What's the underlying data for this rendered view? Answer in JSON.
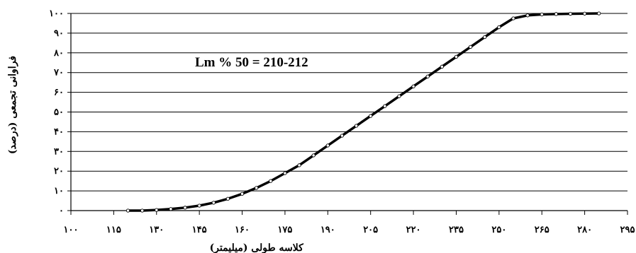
{
  "chart_data": {
    "type": "line",
    "title": "",
    "xlabel": "کلاسه طولی (میلیمتر)",
    "ylabel": "فراوانی تجمعی (درصد)",
    "annotation": "Lm % 50 = 210-212",
    "xlim": [
      100,
      295
    ],
    "ylim": [
      0,
      100
    ],
    "grid": true,
    "x_ticks": [
      100,
      115,
      130,
      145,
      160,
      175,
      190,
      205,
      220,
      235,
      250,
      265,
      280,
      295
    ],
    "x_tick_labels": [
      "۱۰۰",
      "۱۱۵",
      "۱۳۰",
      "۱۴۵",
      "۱۶۰",
      "۱۷۵",
      "۱۹۰",
      "۲۰۵",
      "۲۲۰",
      "۲۳۵",
      "۲۵۰",
      "۲۶۵",
      "۲۸۰",
      "۲۹۵"
    ],
    "y_ticks": [
      0,
      10,
      20,
      30,
      40,
      50,
      60,
      70,
      80,
      90,
      100
    ],
    "y_tick_labels": [
      "۰",
      "۱۰",
      "۲۰",
      "۳۰",
      "۴۰",
      "۵۰",
      "۶۰",
      "۷۰",
      "۸۰",
      "۹۰",
      "۱۰۰"
    ],
    "series": [
      {
        "x": [
          120,
          125,
          130,
          135,
          140,
          145,
          150,
          155,
          160,
          165,
          170,
          175,
          180,
          185,
          190,
          195,
          200,
          205,
          210,
          215,
          220,
          225,
          230,
          235,
          240,
          245,
          250,
          255,
          260,
          265,
          270,
          275,
          280,
          285
        ],
        "y": [
          0,
          0,
          0.3,
          0.8,
          1.5,
          2.5,
          4,
          6,
          8.5,
          11.5,
          15,
          19,
          23,
          28,
          33,
          38,
          43,
          48,
          53,
          58,
          63,
          68,
          73,
          78,
          83,
          88,
          93,
          97.5,
          99,
          99.5,
          99.7,
          99.8,
          99.9,
          100
        ]
      }
    ]
  }
}
